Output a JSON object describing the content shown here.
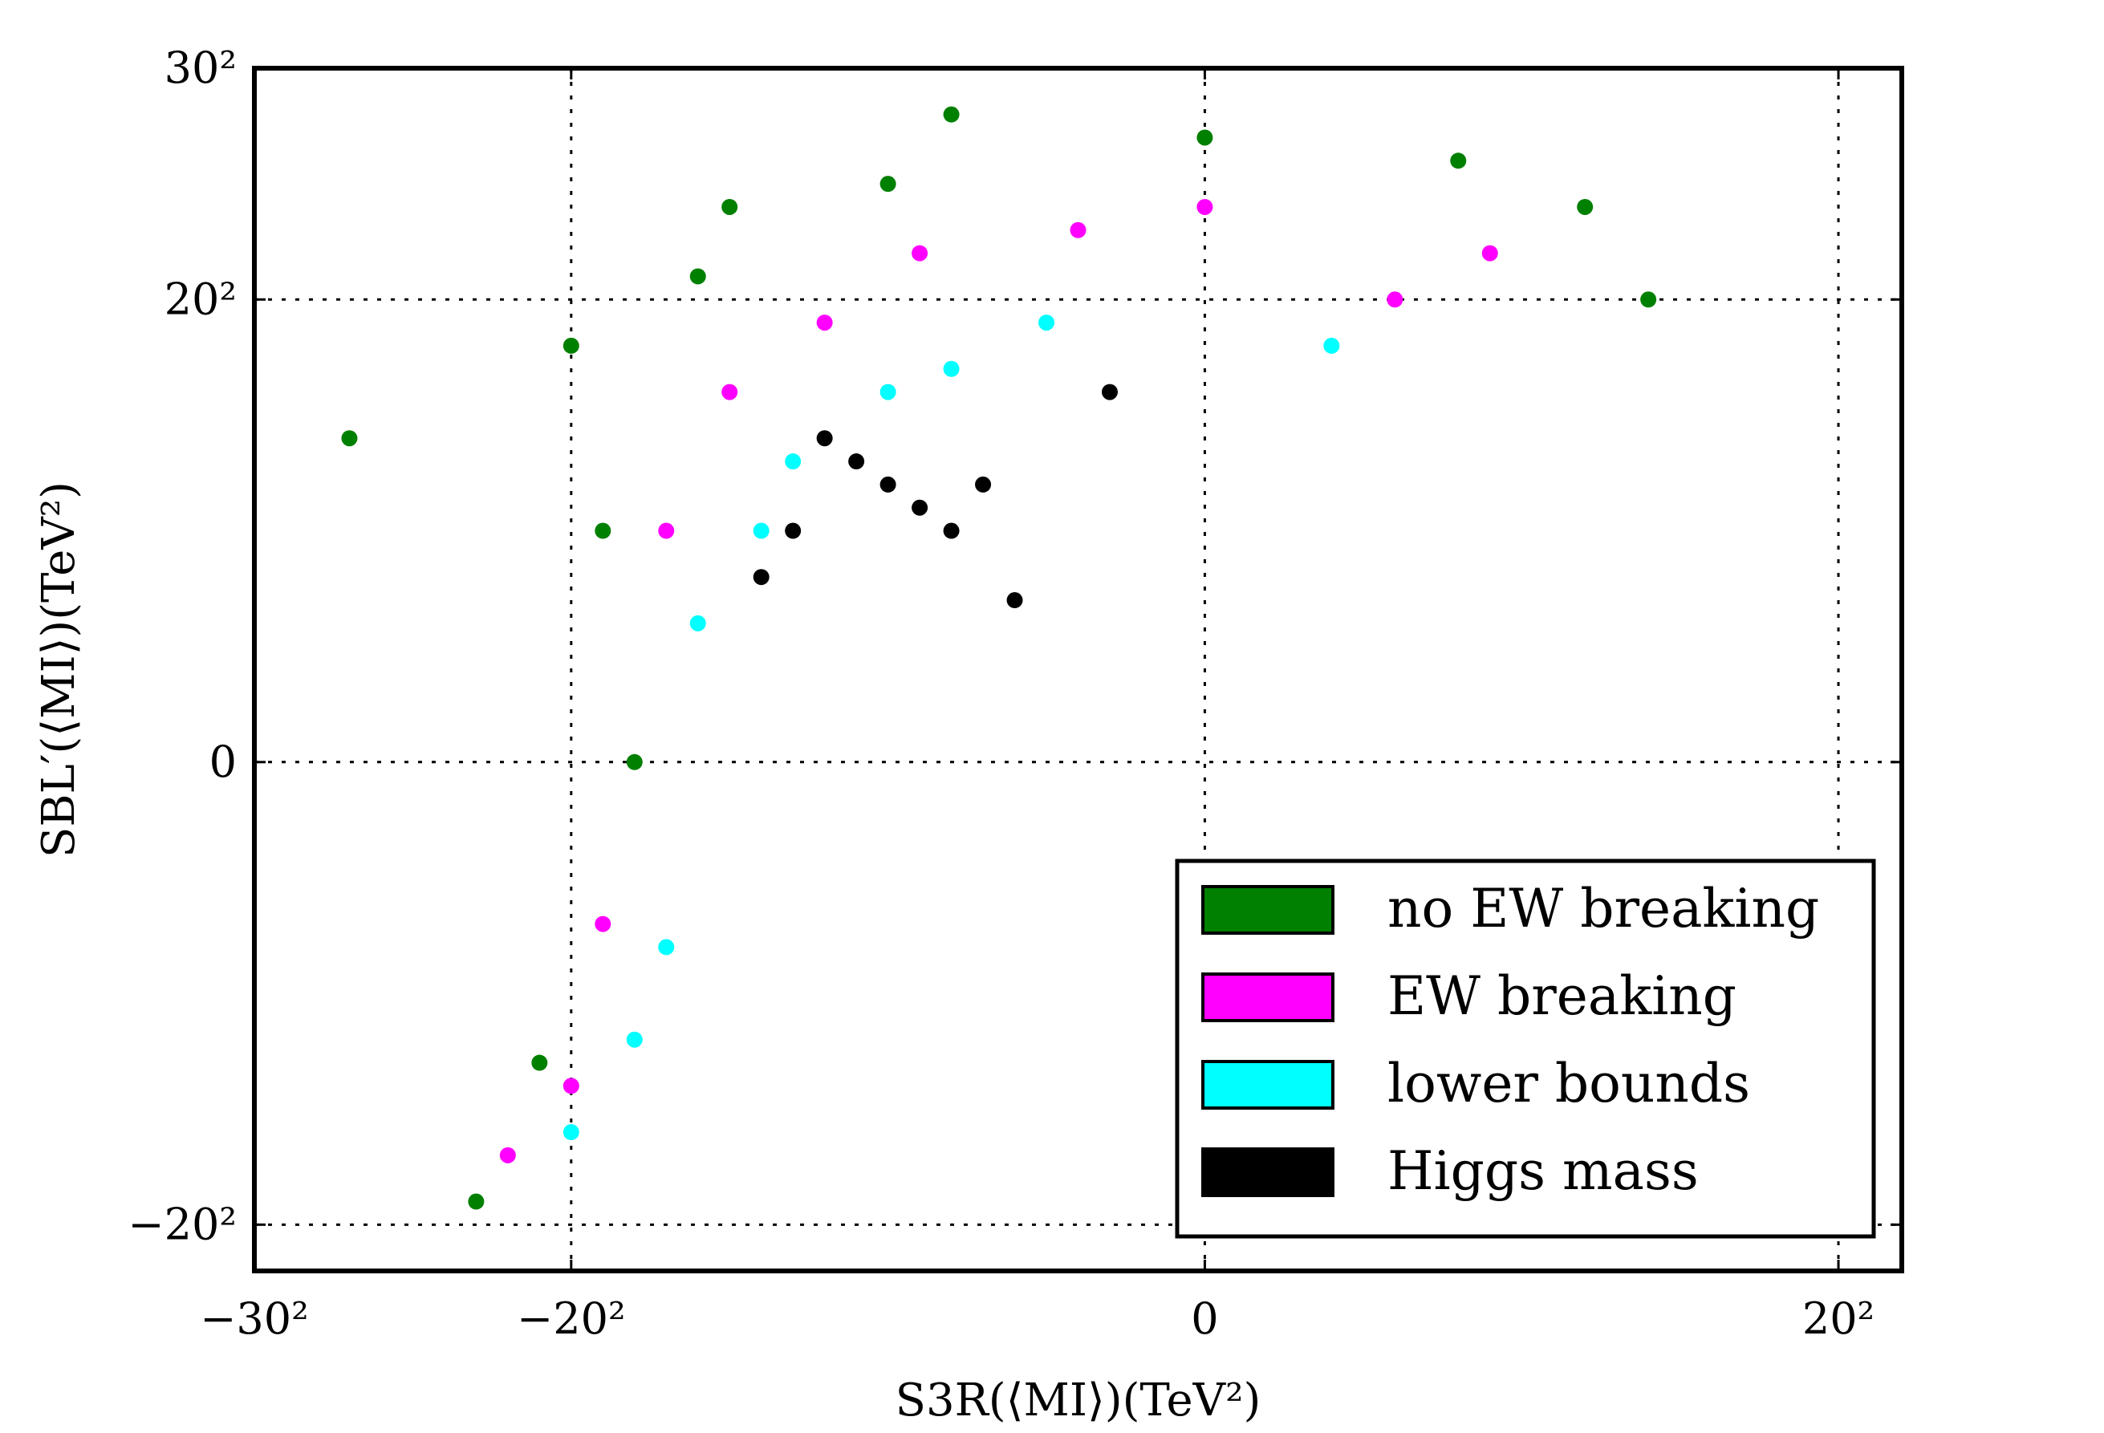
{
  "chart_data": {
    "type": "scatter",
    "xlabel": "S3R(⟨MI⟩)(TeV²)",
    "ylabel": "SBL′(⟨MI⟩)(TeV²)",
    "x_scale": "signed-square-root",
    "y_scale": "signed-square-root",
    "xlim": [
      -900,
      484
    ],
    "ylim": [
      -484,
      900
    ],
    "x_ticks": [
      {
        "value": -900,
        "label": "−30²"
      },
      {
        "value": -400,
        "label": "−20²"
      },
      {
        "value": 0,
        "label": "0"
      },
      {
        "value": 400,
        "label": "20²"
      }
    ],
    "y_ticks": [
      {
        "value": -400,
        "label": "−20²"
      },
      {
        "value": 0,
        "label": "0"
      },
      {
        "value": 400,
        "label": "20²"
      },
      {
        "value": 900,
        "label": "30²"
      }
    ],
    "grid": true,
    "legend_position": "bottom-right",
    "series": [
      {
        "name": "no EW breaking",
        "color": "#008000",
        "points": [
          [
            -529,
            -361
          ],
          [
            -729,
            196
          ],
          [
            -400,
            324
          ],
          [
            -225,
            576
          ],
          [
            -64,
            784
          ],
          [
            0,
            729
          ],
          [
            144,
            576
          ],
          [
            196,
            400
          ],
          [
            -324,
            0
          ],
          [
            -441,
            -169
          ],
          [
            -100,
            625
          ],
          [
            -256,
            441
          ],
          [
            64,
            676
          ],
          [
            -361,
            100
          ]
        ]
      },
      {
        "name": "EW breaking",
        "color": "#ff00ff",
        "points": [
          [
            -484,
            -289
          ],
          [
            -361,
            -49
          ],
          [
            -225,
            256
          ],
          [
            -81,
            484
          ],
          [
            0,
            576
          ],
          [
            81,
            484
          ],
          [
            -144,
            361
          ],
          [
            -289,
            100
          ],
          [
            -400,
            -196
          ],
          [
            -16,
            529
          ],
          [
            36,
            400
          ]
        ]
      },
      {
        "name": "lower bounds",
        "color": "#00ffff",
        "points": [
          [
            -400,
            -256
          ],
          [
            -289,
            -64
          ],
          [
            -196,
            100
          ],
          [
            -100,
            256
          ],
          [
            -25,
            361
          ],
          [
            16,
            324
          ],
          [
            -169,
            169
          ],
          [
            -256,
            36
          ],
          [
            -64,
            289
          ],
          [
            -324,
            -144
          ]
        ]
      },
      {
        "name": "Higgs mass",
        "color": "#000000",
        "points": [
          [
            -121,
            169
          ],
          [
            -100,
            144
          ],
          [
            -81,
            121
          ],
          [
            -64,
            100
          ],
          [
            -36,
            49
          ],
          [
            -144,
            196
          ],
          [
            -49,
            144
          ],
          [
            -196,
            64
          ],
          [
            -9,
            256
          ],
          [
            -169,
            100
          ]
        ]
      }
    ]
  }
}
